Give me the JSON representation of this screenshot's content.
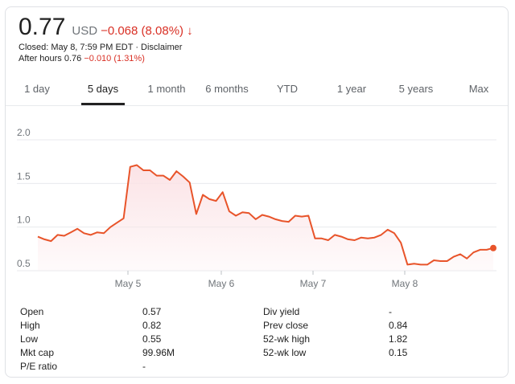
{
  "quote": {
    "price": "0.77",
    "currency": "USD",
    "change": "−0.068 (8.08%)",
    "arrow": "↓",
    "closed_text": "Closed: May 8, 7:59 PM EDT",
    "separator": "·",
    "disclaimer": "Disclaimer",
    "after_hours_label": "After hours 0.76",
    "after_hours_change": "−0.010 (1.31%)"
  },
  "tabs": [
    {
      "label": "1 day"
    },
    {
      "label": "5 days"
    },
    {
      "label": "1 month"
    },
    {
      "label": "6 months"
    },
    {
      "label": "YTD"
    },
    {
      "label": "1 year"
    },
    {
      "label": "5 years"
    },
    {
      "label": "Max"
    }
  ],
  "active_tab": "5 days",
  "colors": {
    "line": "#e8542a",
    "fill": "#fbe3e6",
    "grid": "#e8eaed",
    "down": "#d93025"
  },
  "chart_data": {
    "type": "area",
    "x_tick_labels": [
      "May 5",
      "May 6",
      "May 7",
      "May 8"
    ],
    "y_tick_labels": [
      "2.0",
      "1.5",
      "1.0",
      "0.5"
    ],
    "ylim": [
      0.5,
      2.0
    ],
    "grid": true,
    "series": [
      {
        "values": [
          0.89,
          0.86,
          0.84,
          0.91,
          0.9,
          0.94,
          0.98,
          0.93,
          0.91,
          0.94,
          0.93,
          1.0,
          1.05,
          1.1,
          1.69,
          1.71,
          1.65,
          1.65,
          1.59,
          1.59,
          1.54,
          1.64,
          1.58,
          1.51,
          1.15,
          1.37,
          1.32,
          1.3,
          1.4,
          1.18,
          1.13,
          1.17,
          1.16,
          1.09,
          1.14,
          1.12,
          1.09,
          1.07,
          1.06,
          1.13,
          1.12,
          1.13,
          0.87,
          0.87,
          0.85,
          0.91,
          0.89,
          0.86,
          0.85,
          0.88,
          0.87,
          0.88,
          0.91,
          0.97,
          0.93,
          0.82,
          0.57,
          0.58,
          0.57,
          0.57,
          0.62,
          0.61,
          0.61,
          0.66,
          0.69,
          0.64,
          0.71,
          0.74,
          0.74,
          0.76
        ]
      }
    ]
  },
  "stats": {
    "left": [
      {
        "label": "Open",
        "value": "0.57"
      },
      {
        "label": "High",
        "value": "0.82"
      },
      {
        "label": "Low",
        "value": "0.55"
      },
      {
        "label": "Mkt cap",
        "value": "99.96M"
      },
      {
        "label": "P/E ratio",
        "value": "-"
      }
    ],
    "right": [
      {
        "label": "Div yield",
        "value": "-"
      },
      {
        "label": "Prev close",
        "value": "0.84"
      },
      {
        "label": "52-wk high",
        "value": "1.82"
      },
      {
        "label": "52-wk low",
        "value": "0.15"
      }
    ]
  }
}
